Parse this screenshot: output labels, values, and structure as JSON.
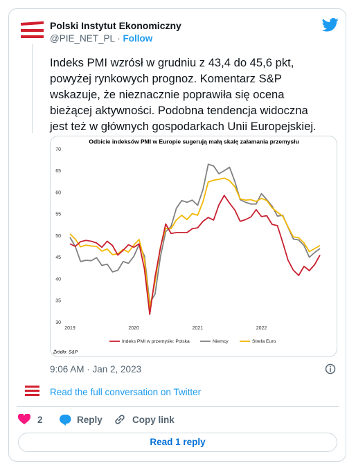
{
  "header": {
    "name": "Polski Instytut Ekonomiczny",
    "handle": "@PIE_NET_PL",
    "separator": "·",
    "follow": "Follow"
  },
  "tweet": {
    "text_lines": [
      "Indeks PMI wzrósł w grudniu z 43,4 do 45,6 pkt,",
      "powyżej rynkowych prognoz. Komentarz S&P",
      "wskazuje, że nieznacznie poprawiła się ocena",
      "bieżącej aktywności. Podobna tendencja widoczna",
      "jest też w głównych gospodarkach Unii Europejskiej."
    ]
  },
  "chart_data": {
    "type": "line",
    "title": "Odbicie indeksów PMI w Europie sugerują małą skalę załamania przemysłu",
    "source": "Źródło: S&P",
    "categories": [
      "2019",
      null,
      null,
      null,
      null,
      null,
      null,
      null,
      null,
      null,
      null,
      null,
      "2020",
      null,
      null,
      null,
      null,
      null,
      null,
      null,
      null,
      null,
      null,
      null,
      "2021",
      null,
      null,
      null,
      null,
      null,
      null,
      null,
      null,
      null,
      null,
      null,
      "2022",
      null,
      null,
      null,
      null,
      null,
      null,
      null,
      null,
      null,
      null,
      null
    ],
    "ylim": [
      30,
      70
    ],
    "yticks": [
      30,
      35,
      40,
      45,
      50,
      55,
      60,
      65,
      70
    ],
    "grid": false,
    "series": [
      {
        "name": "Indeks PMI w przemyśle: Polska",
        "color": "#c8202f",
        "values": [
          48.2,
          47.6,
          48.7,
          49.0,
          48.8,
          48.4,
          47.4,
          48.8,
          47.8,
          45.6,
          46.7,
          48.0,
          47.4,
          48.2,
          42.4,
          31.9,
          40.6,
          47.2,
          52.8,
          50.6,
          50.8,
          50.8,
          50.8,
          51.7,
          51.9,
          53.4,
          54.3,
          53.7,
          57.2,
          59.4,
          57.6,
          56.0,
          53.4,
          53.8,
          54.4,
          56.1,
          54.5,
          54.7,
          52.7,
          52.4,
          48.5,
          44.4,
          42.1,
          40.9,
          43.0,
          42.0,
          43.4,
          45.6
        ]
      },
      {
        "name": "Niemcy",
        "color": "#808080",
        "values": [
          49.7,
          47.6,
          44.1,
          44.4,
          44.3,
          45.0,
          43.2,
          43.5,
          41.7,
          42.1,
          44.1,
          43.7,
          45.3,
          48.0,
          45.4,
          34.5,
          36.6,
          45.2,
          51.0,
          52.2,
          56.4,
          58.2,
          57.8,
          58.3,
          57.1,
          60.7,
          66.6,
          66.2,
          64.4,
          65.1,
          65.9,
          62.6,
          58.4,
          57.8,
          57.4,
          57.4,
          59.8,
          58.4,
          56.9,
          54.6,
          54.8,
          52.0,
          49.3,
          49.1,
          47.8,
          45.1,
          46.2,
          47.1
        ]
      },
      {
        "name": "Strefa Euro",
        "color": "#f2b705",
        "values": [
          50.5,
          49.3,
          47.5,
          47.9,
          47.7,
          47.6,
          46.5,
          47.0,
          45.7,
          45.9,
          46.9,
          46.3,
          47.9,
          49.2,
          44.5,
          33.4,
          39.4,
          47.4,
          51.8,
          51.7,
          53.7,
          54.8,
          53.8,
          55.2,
          54.8,
          57.9,
          62.5,
          62.9,
          63.1,
          63.4,
          62.8,
          61.4,
          58.6,
          58.3,
          58.4,
          58.0,
          58.7,
          58.2,
          56.5,
          55.5,
          54.6,
          52.1,
          49.8,
          49.6,
          48.4,
          46.4,
          47.1,
          47.8
        ]
      }
    ]
  },
  "footer": {
    "timestamp": "9:06 AM · Jan 2, 2023",
    "conversation": "Read the full conversation on Twitter",
    "likes": 2,
    "reply": "Reply",
    "copy_link": "Copy link",
    "read_replies": "Read 1 reply"
  }
}
